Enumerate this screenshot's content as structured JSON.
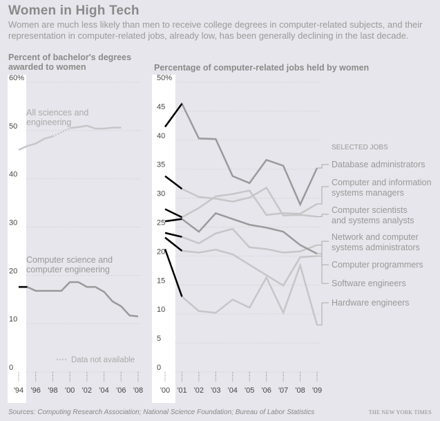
{
  "header": {
    "title": "Women in High Tech",
    "subtitle": "Women are much less likely than men to receive college degrees in computer-related subjects, and their representation in computer-related jobs, already low, has been generally declining in the last decade."
  },
  "footer": {
    "source": "Sources: Computing Research Association; National Science Foundation; Bureau of Labor Statistics",
    "credit": "THE NEW YORK TIMES"
  },
  "colors": {
    "background": "#e6e6ec",
    "panel": "#ffffff",
    "grid": "#c8c8cc",
    "light_line": "#c6c6c9",
    "dark_line": "#9a9a9c",
    "highlight": "#000000"
  },
  "chart_data": [
    {
      "type": "line",
      "title": "Percent of bachelor's degrees awarded to women",
      "ylim": [
        0,
        60
      ],
      "yticks": [
        0,
        10,
        20,
        30,
        40,
        50,
        60
      ],
      "ytick_labels": [
        "0",
        "10",
        "20",
        "30",
        "40",
        "50",
        "60%"
      ],
      "x_range": [
        1994,
        2008
      ],
      "xtick_years": [
        1994,
        1996,
        1998,
        2000,
        2002,
        2004,
        2006,
        2008
      ],
      "xtick_labels": [
        "'94",
        "'96",
        "'98",
        "'00",
        "'02",
        "'04",
        "'06",
        "'08"
      ],
      "legend_note": "Data not available",
      "series": [
        {
          "name": "All sciences and engineering",
          "style": "light",
          "points": [
            [
              1994,
              46
            ],
            [
              1995,
              46.8
            ],
            [
              1996,
              47.3
            ],
            [
              1997,
              48.3
            ],
            [
              1998,
              48.8
            ]
          ],
          "missing_segment": [
            [
              1998,
              48.8
            ],
            [
              1999,
              49.6
            ],
            [
              2000,
              50.5
            ]
          ],
          "points_after": [
            [
              2000,
              50.5
            ],
            [
              2001,
              50.7
            ],
            [
              2002,
              51
            ],
            [
              2003,
              50.4
            ],
            [
              2004,
              50.4
            ],
            [
              2005,
              50.6
            ],
            [
              2006,
              50.6
            ]
          ]
        },
        {
          "name": "Computer science and computer engineering",
          "style": "dark",
          "points": [
            [
              1994,
              17.6
            ],
            [
              1995,
              17.6
            ],
            [
              1996,
              16.8
            ],
            [
              1997,
              16.8
            ],
            [
              1998,
              16.8
            ],
            [
              1999,
              16.8
            ],
            [
              2000,
              18.6
            ],
            [
              2001,
              18.6
            ],
            [
              2002,
              17.6
            ],
            [
              2003,
              17.6
            ],
            [
              2004,
              16.6
            ],
            [
              2005,
              14.6
            ],
            [
              2006,
              13.6
            ],
            [
              2007,
              11.7
            ],
            [
              2008,
              11.5
            ]
          ],
          "highlight": [
            [
              1994,
              17.6
            ],
            [
              1995,
              17.6
            ]
          ]
        }
      ]
    },
    {
      "type": "line",
      "title": "Percentage of computer-related jobs held by women",
      "ylim": [
        0,
        50
      ],
      "yticks": [
        0,
        5,
        10,
        15,
        20,
        25,
        30,
        35,
        40,
        45,
        50
      ],
      "ytick_labels": [
        "0",
        "5",
        "10",
        "15",
        "20",
        "25",
        "30",
        "35",
        "40",
        "45",
        "50%"
      ],
      "x": [
        2000,
        2001,
        2002,
        2003,
        2004,
        2005,
        2006,
        2007,
        2008,
        2009
      ],
      "xtick_labels": [
        "'00",
        "'01",
        "'02",
        "'03",
        "'04",
        "'05",
        "'06",
        "'07",
        "'08",
        "'09"
      ],
      "legend_header": "SELECTED JOBS",
      "series": [
        {
          "name": "Database administrators",
          "style": "dark",
          "values": [
            42.3,
            46.3,
            40.3,
            40.2,
            33.8,
            32.6,
            36.6,
            35.6,
            28.9,
            35.2
          ]
        },
        {
          "name": "Computer and information systems managers",
          "style": "light",
          "values": [
            28.1,
            26.7,
            28.3,
            30.3,
            30.7,
            31.3,
            27.1,
            27.4,
            27.3,
            29.0
          ]
        },
        {
          "name": "Computer scientists and systems analysts",
          "style": "light",
          "values": [
            33.8,
            31.6,
            30.2,
            29.9,
            29.4,
            30.1,
            31.8,
            27.0,
            27.1,
            26.8
          ]
        },
        {
          "name": "Network and computer systems administrators",
          "style": "dark",
          "values": [
            26.0,
            26.4,
            24.2,
            27.4,
            26.4,
            25.4,
            24.9,
            24.2,
            21.9,
            20.4
          ]
        },
        {
          "name": "Computer programmers",
          "style": "light",
          "values": [
            23.2,
            20.9,
            20.6,
            21.1,
            20.3,
            18.5,
            16.7,
            14.9,
            19.8,
            20.0
          ]
        },
        {
          "name": "Software engineers",
          "style": "light",
          "values": [
            24.0,
            23.3,
            22.2,
            23.9,
            24.7,
            21.5,
            21.2,
            20.6,
            20.8,
            21.9
          ]
        },
        {
          "name": "Hardware engineers",
          "style": "light",
          "values": [
            21.2,
            13.0,
            10.5,
            10.2,
            12.5,
            11.1,
            16.3,
            10.2,
            18.4,
            8.1
          ]
        }
      ]
    }
  ]
}
